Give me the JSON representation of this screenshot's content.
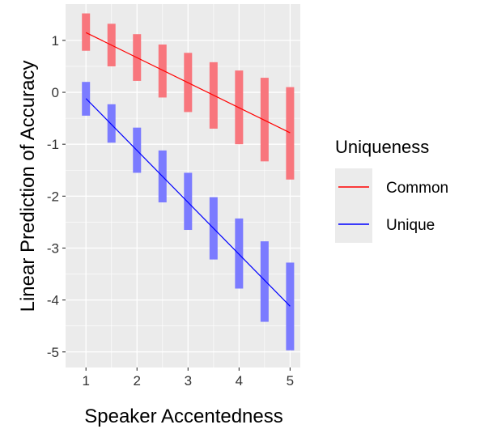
{
  "chart_data": {
    "type": "line",
    "title": "",
    "xlabel": "Speaker Accentedness",
    "ylabel": "Linear Prediction of Accuracy",
    "xlim": [
      0.6,
      5.2
    ],
    "ylim": [
      -5.3,
      1.7
    ],
    "x_ticks": [
      1,
      2,
      3,
      4,
      5
    ],
    "y_ticks": [
      -5,
      -4,
      -3,
      -2,
      -1,
      0,
      1
    ],
    "x_tick_labels": [
      "1",
      "2",
      "3",
      "4",
      "5"
    ],
    "y_tick_labels": [
      "-5",
      "-4",
      "-3",
      "-2",
      "-1",
      "0",
      "1"
    ],
    "grid": true,
    "background": "#ebebeb",
    "legend": {
      "title": "Uniqueness",
      "position": "right"
    },
    "series": [
      {
        "name": "Common",
        "color": "#ff0000",
        "band_color": "#f8767d",
        "line": {
          "x": [
            1,
            5
          ],
          "y": [
            1.15,
            -0.78
          ]
        },
        "intervals": [
          {
            "x": 1.0,
            "low": 0.8,
            "high": 1.52
          },
          {
            "x": 1.5,
            "low": 0.5,
            "high": 1.32
          },
          {
            "x": 2.0,
            "low": 0.22,
            "high": 1.12
          },
          {
            "x": 2.5,
            "low": -0.1,
            "high": 0.92
          },
          {
            "x": 3.0,
            "low": -0.38,
            "high": 0.76
          },
          {
            "x": 3.5,
            "low": -0.7,
            "high": 0.58
          },
          {
            "x": 4.0,
            "low": -1.0,
            "high": 0.42
          },
          {
            "x": 4.5,
            "low": -1.33,
            "high": 0.28
          },
          {
            "x": 5.0,
            "low": -1.68,
            "high": 0.1
          }
        ]
      },
      {
        "name": "Unique",
        "color": "#0000ff",
        "band_color": "#7b7bff",
        "line": {
          "x": [
            1,
            5
          ],
          "y": [
            -0.12,
            -4.12
          ]
        },
        "intervals": [
          {
            "x": 1.0,
            "low": -0.45,
            "high": 0.2
          },
          {
            "x": 1.5,
            "low": -0.97,
            "high": -0.23
          },
          {
            "x": 2.0,
            "low": -1.55,
            "high": -0.68
          },
          {
            "x": 2.5,
            "low": -2.12,
            "high": -1.12
          },
          {
            "x": 3.0,
            "low": -2.65,
            "high": -1.55
          },
          {
            "x": 3.5,
            "low": -3.22,
            "high": -2.02
          },
          {
            "x": 4.0,
            "low": -3.78,
            "high": -2.43
          },
          {
            "x": 4.5,
            "low": -4.42,
            "high": -2.87
          },
          {
            "x": 5.0,
            "low": -4.97,
            "high": -3.28
          }
        ]
      }
    ]
  }
}
